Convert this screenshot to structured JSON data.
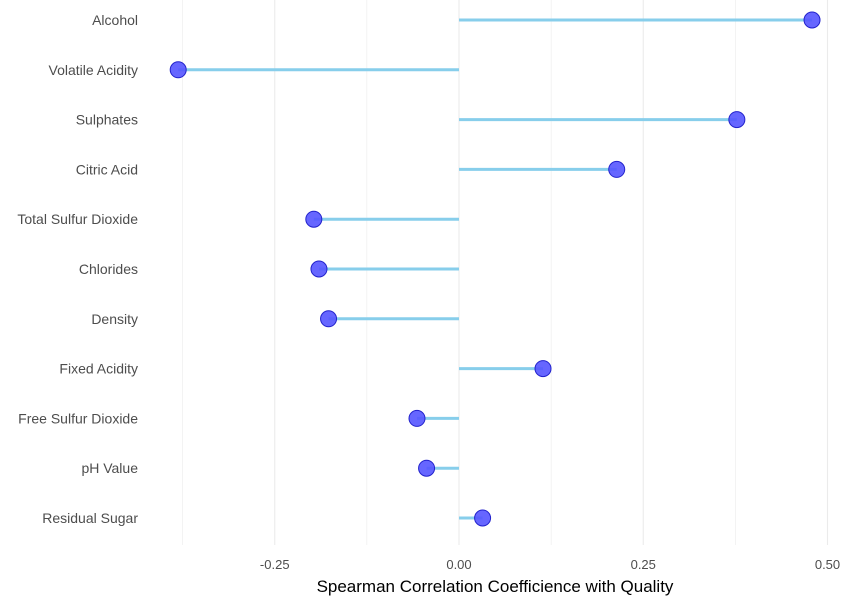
{
  "chart_data": {
    "type": "lollipop",
    "orientation": "horizontal",
    "xlabel": "Spearman Correlation Coefficience with Quality",
    "ylabel": "",
    "xlim": [
      -0.4,
      0.5
    ],
    "xticks": [
      -0.25,
      0.0,
      0.25,
      0.5
    ],
    "xtick_labels": [
      "-0.25",
      "0.00",
      "0.25",
      "0.50"
    ],
    "grid": true,
    "categories": [
      "Alcohol",
      "Volatile Acidity",
      "Sulphates",
      "Citric Acid",
      "Total Sulfur Dioxide",
      "Chlorides",
      "Density",
      "Fixed Acidity",
      "Free Sulfur Dioxide",
      "pH Value",
      "Residual Sugar"
    ],
    "values": [
      0.479,
      -0.381,
      0.377,
      0.214,
      -0.197,
      -0.19,
      -0.177,
      0.114,
      -0.057,
      -0.044,
      0.032
    ],
    "colors": {
      "stem": "#87ceeb",
      "point": "#5555ff",
      "point_edge": "#2222cc",
      "grid": "#ebebeb"
    }
  }
}
